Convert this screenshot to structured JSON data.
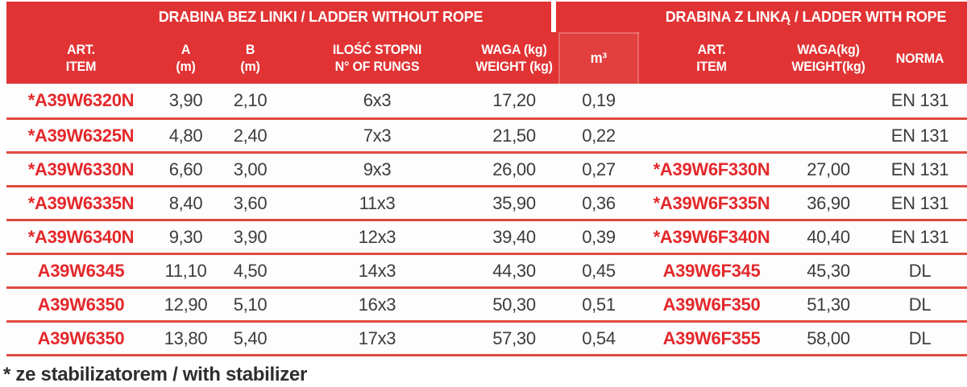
{
  "table": {
    "title_left": "DRABINA BEZ LINKI / LADDER WITHOUT ROPE",
    "title_right": "DRABINA Z LINKĄ / LADDER WITH ROPE",
    "columns": [
      {
        "id": "art-item",
        "line1": "ART.",
        "line2": "ITEM"
      },
      {
        "id": "a-m",
        "line1": "A",
        "line2": "(m)"
      },
      {
        "id": "b-m",
        "line1": "B",
        "line2": "(m)"
      },
      {
        "id": "rungs",
        "line1": "ILOŚĆ STOPNI",
        "line2": "N° OF RUNGS"
      },
      {
        "id": "weight",
        "line1": "WAGA (kg)",
        "line2": "WEIGHT (kg)"
      },
      {
        "id": "volume",
        "line1": "m³",
        "line2": ""
      },
      {
        "id": "art-item-rope",
        "line1": "ART.",
        "line2": "ITEM"
      },
      {
        "id": "weight-rope",
        "line1": "WAGA(kg)",
        "line2": "WEIGHT(kg)"
      },
      {
        "id": "norma",
        "line1": "NORMA",
        "line2": ""
      }
    ],
    "rows": [
      [
        "*A39W6320N",
        "3,90",
        "2,10",
        "6x3",
        "17,20",
        "0,19",
        "",
        "",
        "EN 131"
      ],
      [
        "*A39W6325N",
        "4,80",
        "2,40",
        "7x3",
        "21,50",
        "0,22",
        "",
        "",
        "EN 131"
      ],
      [
        "*A39W6330N",
        "6,60",
        "3,00",
        "9x3",
        "26,00",
        "0,27",
        "*A39W6F330N",
        "27,00",
        "EN 131"
      ],
      [
        "*A39W6335N",
        "8,40",
        "3,60",
        "11x3",
        "35,90",
        "0,36",
        "*A39W6F335N",
        "36,90",
        "EN 131"
      ],
      [
        "*A39W6340N",
        "9,30",
        "3,90",
        "12x3",
        "39,40",
        "0,39",
        "*A39W6F340N",
        "40,40",
        "EN 131"
      ],
      [
        "A39W6345",
        "11,10",
        "4,50",
        "14x3",
        "44,30",
        "0,45",
        "A39W6F345",
        "45,30",
        "DL"
      ],
      [
        "A39W6350",
        "12,90",
        "5,10",
        "16x3",
        "50,30",
        "0,51",
        "A39W6F350",
        "51,30",
        "DL"
      ],
      [
        "A39W6350",
        "13,80",
        "5,40",
        "17x3",
        "57,30",
        "0,54",
        "A39W6F355",
        "58,00",
        "DL"
      ]
    ]
  },
  "footer": {
    "note": "* ze stabilizatorem / with stabilizer"
  },
  "colors": {
    "header_red": "#e13334",
    "separator_red": "#df4a3e",
    "article_code_red": "#e4282b",
    "data_text": "#3c3c3c"
  }
}
